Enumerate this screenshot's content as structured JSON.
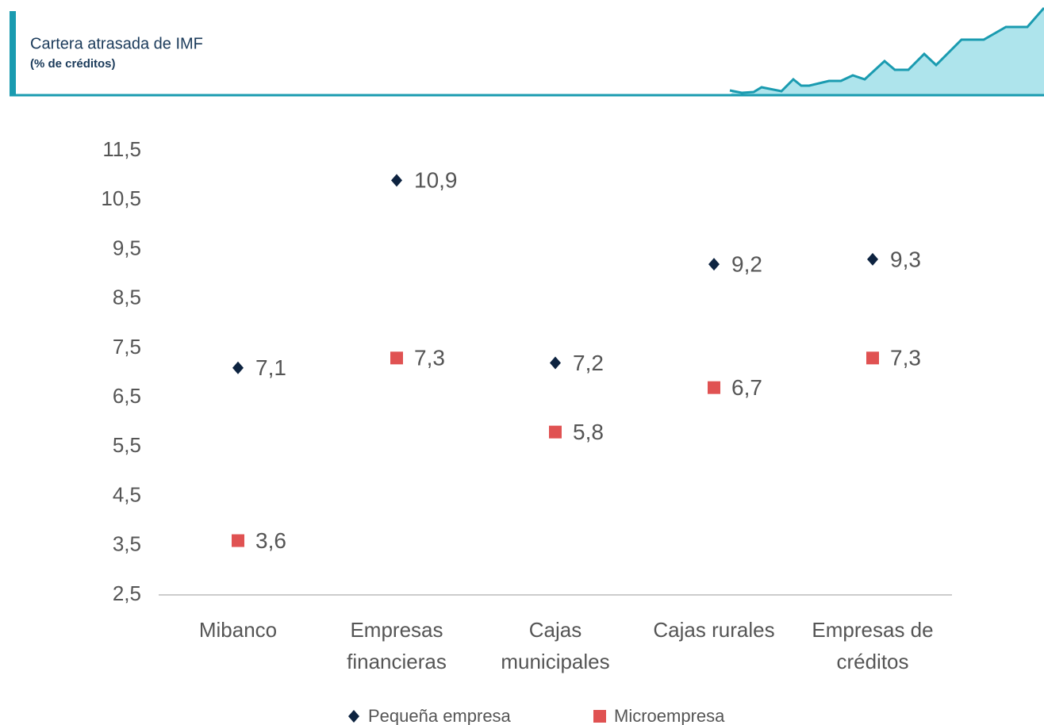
{
  "header": {
    "title": "Cartera atrasada de IMF",
    "subtitle": "(% de créditos)"
  },
  "chart_data": {
    "type": "scatter",
    "categories": [
      "Mibanco",
      "Empresas financieras",
      "Cajas municipales",
      "Cajas rurales",
      "Empresas de créditos"
    ],
    "series": [
      {
        "name": "Pequeña empresa",
        "color": "#0d2340",
        "marker": "diamond",
        "values": [
          7.1,
          10.9,
          7.2,
          9.2,
          9.3
        ],
        "value_labels": [
          "7,1",
          "10,9",
          "7,2",
          "9,2",
          "9,3"
        ]
      },
      {
        "name": "Microempresa",
        "color": "#e05252",
        "marker": "square",
        "values": [
          3.6,
          7.3,
          5.8,
          6.7,
          7.3
        ],
        "value_labels": [
          "3,6",
          "7,3",
          "5,8",
          "6,7",
          "7,3"
        ]
      }
    ],
    "ylim": [
      2.5,
      11.5
    ],
    "yticks": [
      {
        "value": 2.5,
        "label": "2,5"
      },
      {
        "value": 3.5,
        "label": "3,5"
      },
      {
        "value": 4.5,
        "label": "4,5"
      },
      {
        "value": 5.5,
        "label": "5,5"
      },
      {
        "value": 6.5,
        "label": "6,5"
      },
      {
        "value": 7.5,
        "label": "7,5"
      },
      {
        "value": 8.5,
        "label": "8,5"
      },
      {
        "value": 9.5,
        "label": "9,5"
      },
      {
        "value": 10.5,
        "label": "10,5"
      },
      {
        "value": 11.5,
        "label": "11,5"
      }
    ],
    "legend": "bottom"
  }
}
